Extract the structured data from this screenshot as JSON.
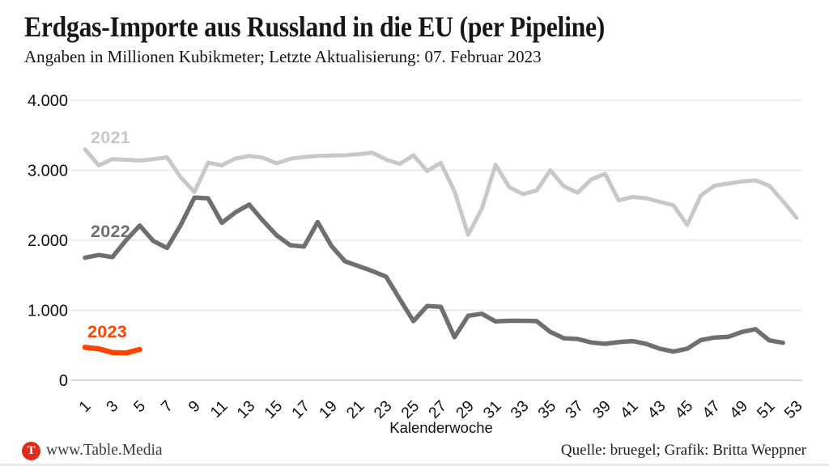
{
  "header": {
    "title": "Erdgas-Importe aus Russland in die EU (per Pipeline)",
    "subtitle": "Angaben in Millionen Kubikmeter; Letzte Aktualisierung: 07. Februar 2023"
  },
  "chart_data": {
    "type": "line",
    "title": "Erdgas-Importe aus Russland in die EU (per Pipeline)",
    "unit": "Millionen Kubikmeter",
    "xlabel": "Kalenderwoche",
    "ylabel": "",
    "xlim": [
      1,
      53
    ],
    "ylim": [
      0,
      4000
    ],
    "grid": "horizontal",
    "legend": "inline-labels",
    "x_ticks": [
      1,
      3,
      5,
      7,
      9,
      11,
      13,
      15,
      17,
      19,
      21,
      23,
      25,
      27,
      29,
      31,
      33,
      35,
      37,
      39,
      41,
      43,
      45,
      47,
      49,
      51,
      53
    ],
    "y_ticks": [
      {
        "value": 0,
        "label": "0"
      },
      {
        "value": 1000,
        "label": "1.000"
      },
      {
        "value": 2000,
        "label": "2.000"
      },
      {
        "value": 3000,
        "label": "3.000"
      },
      {
        "value": 4000,
        "label": "4.000"
      }
    ],
    "grid_color": "#e6e6e6",
    "zero_line_color": "#c9c9c9",
    "series": [
      {
        "name": "2021",
        "color": "#c8c8c8",
        "start_week": 1,
        "values": [
          3300,
          3070,
          3160,
          3150,
          3140,
          3160,
          3185,
          2900,
          2690,
          3110,
          3070,
          3170,
          3205,
          3180,
          3100,
          3165,
          3190,
          3205,
          3210,
          3215,
          3230,
          3250,
          3155,
          3090,
          3215,
          2990,
          3105,
          2700,
          2080,
          2450,
          3080,
          2760,
          2660,
          2710,
          3000,
          2770,
          2680,
          2870,
          2950,
          2570,
          2620,
          2600,
          2550,
          2500,
          2220,
          2640,
          2780,
          2810,
          2840,
          2855,
          2780,
          2560,
          2320
        ]
      },
      {
        "name": "2022",
        "color": "#6f6f6f",
        "start_week": 1,
        "values": [
          1750,
          1790,
          1760,
          2000,
          2210,
          1990,
          1890,
          2220,
          2610,
          2600,
          2250,
          2400,
          2510,
          2280,
          2070,
          1930,
          1910,
          2260,
          1920,
          1700,
          1630,
          1560,
          1480,
          1160,
          845,
          1060,
          1050,
          615,
          920,
          950,
          840,
          850,
          850,
          845,
          690,
          600,
          590,
          540,
          520,
          545,
          560,
          520,
          450,
          410,
          450,
          575,
          610,
          620,
          690,
          730,
          570,
          535
        ]
      },
      {
        "name": "2023",
        "color": "#ff4300",
        "start_week": 1,
        "values": [
          470,
          450,
          395,
          390,
          440
        ]
      }
    ]
  },
  "footer": {
    "logo_letter": "T",
    "logo_color": "#e02a1c",
    "brand": "www.Table.Media",
    "source": "Quelle: bruegel; Grafik: Britta Weppner"
  }
}
